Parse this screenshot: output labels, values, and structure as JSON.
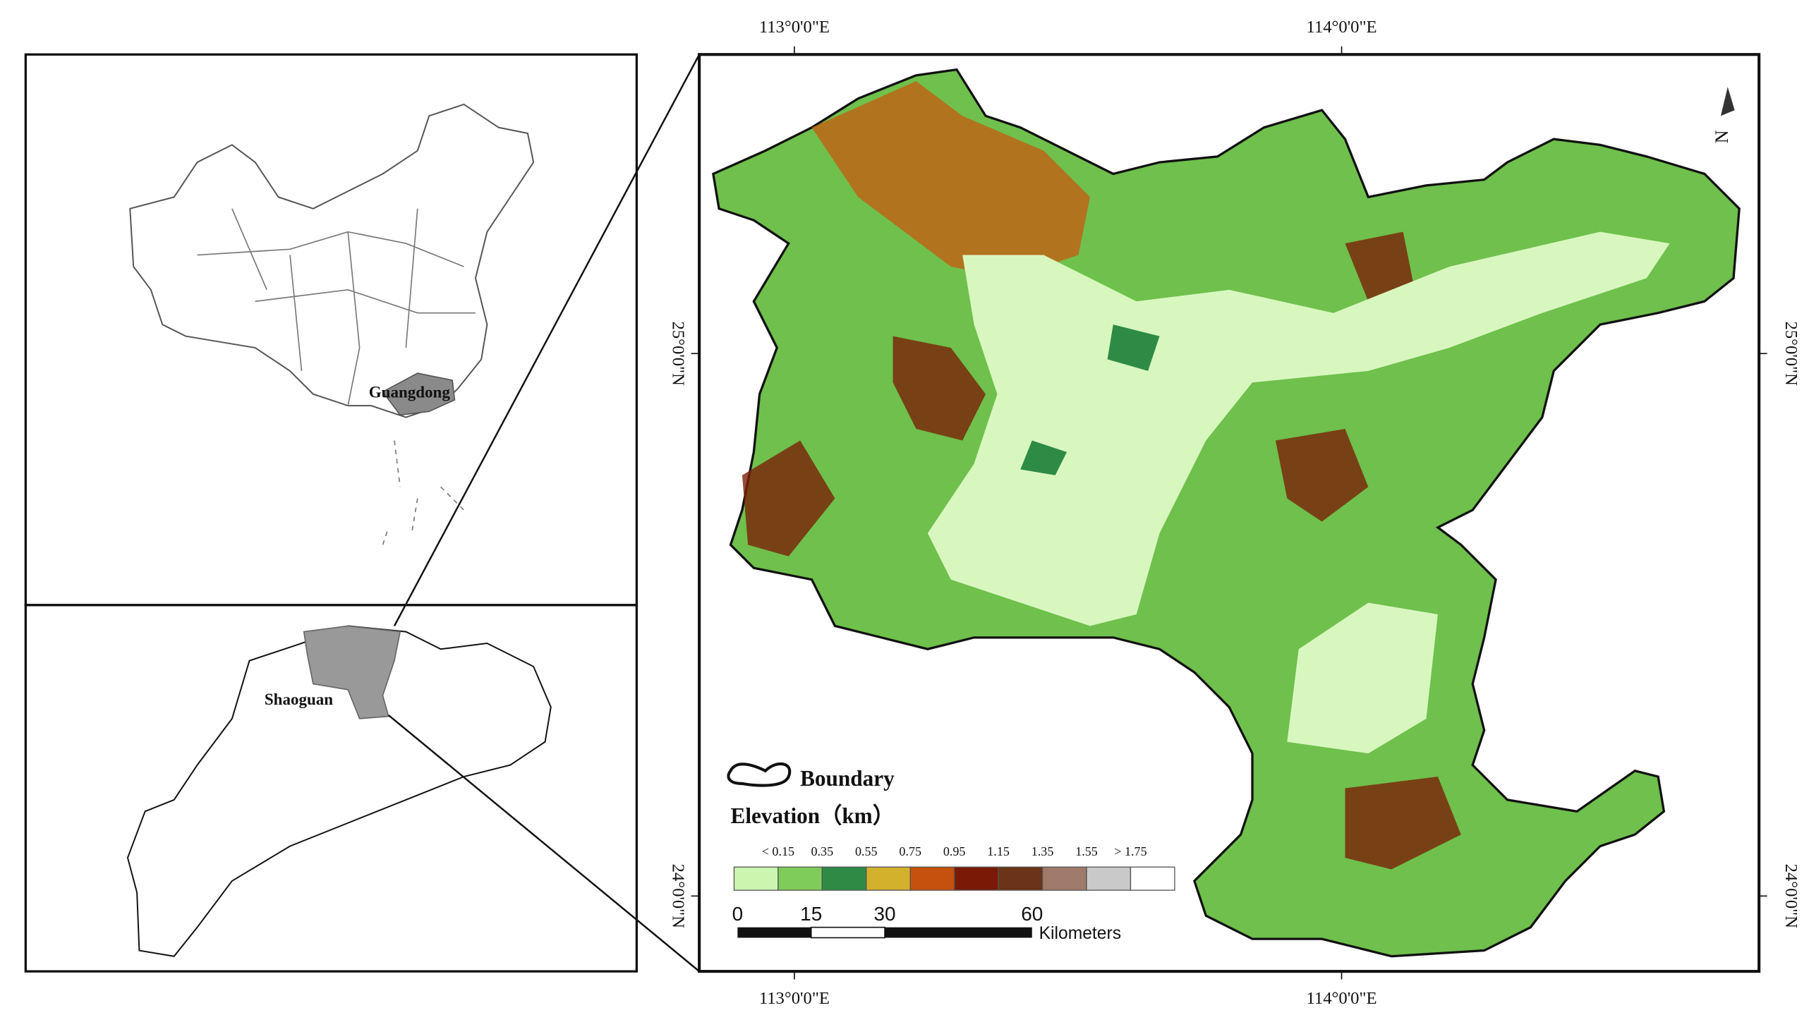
{
  "inset_china": {
    "label": "Guangdong"
  },
  "inset_guangdong": {
    "label": "Shaoguan"
  },
  "graticule": {
    "top": [
      "113°0'0\"E",
      "114°0'0\"E"
    ],
    "bottom": [
      "113°0'0\"E",
      "114°0'0\"E"
    ],
    "left": [
      "25°0'0\"N",
      "24°0'0\"N"
    ],
    "right": [
      "25°0'0\"N",
      "24°0'0\"N"
    ]
  },
  "north_arrow": "N",
  "legend": {
    "boundary": "Boundary",
    "title": "Elevation（km）",
    "labels": [
      "< 0.15",
      "0.35",
      "0.55",
      "0.75",
      "0.95",
      "1.15",
      "1.35",
      "1.55",
      "> 1.75"
    ],
    "colors": [
      "#ccf5b0",
      "#7fcc5a",
      "#2e8b45",
      "#d4b12c",
      "#c6500e",
      "#7a1a06",
      "#6b3318",
      "#a07a6a",
      "#c9c9c9",
      "#ffffff"
    ]
  },
  "scale_bar": {
    "ticks": [
      "0",
      "15",
      "30",
      "60"
    ],
    "unit": "Kilometers"
  }
}
